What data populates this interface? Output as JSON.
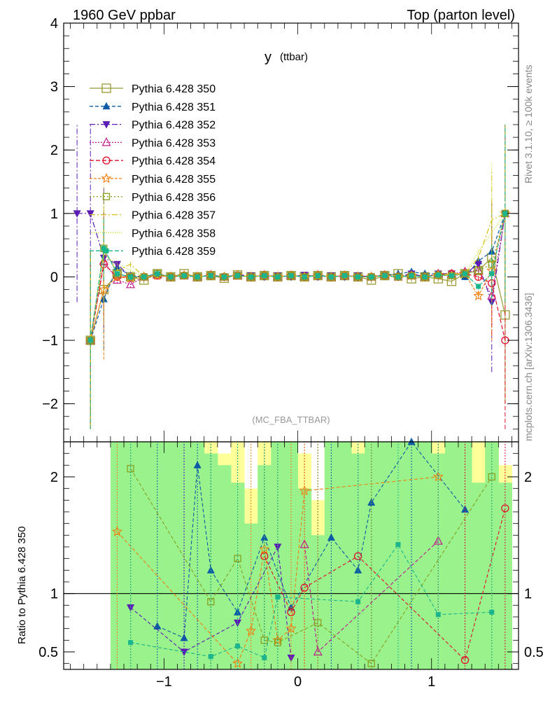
{
  "header": {
    "left": "1960 GeV ppbar",
    "right": "Top (parton level)"
  },
  "side_labels": {
    "rivet": "Rivet 3.1.10, ≥ 100k events",
    "mcplots": "mcplots.cern.ch [arXiv:1306.3436]"
  },
  "chart_data": [
    {
      "type": "line",
      "panel": "main",
      "title": "y",
      "title_sub": "(ttbar)",
      "watermark": "(MC_FBA_TTBAR)",
      "xlabel": "",
      "ylabel": "",
      "xlim": [
        -1.75,
        1.65
      ],
      "ylim": [
        -2.6,
        4.0
      ],
      "yticks": [
        -2,
        -1,
        0,
        1,
        2,
        3,
        4
      ],
      "ytick_labels": [
        "−2",
        "−1",
        "0",
        "1",
        "2",
        "3",
        "4"
      ],
      "legend_placement": "top-left",
      "x": [
        -1.65,
        -1.55,
        -1.45,
        -1.35,
        -1.25,
        -1.15,
        -1.05,
        -0.95,
        -0.85,
        -0.75,
        -0.65,
        -0.55,
        -0.45,
        -0.35,
        -0.25,
        -0.15,
        -0.05,
        0.05,
        0.15,
        0.25,
        0.35,
        0.45,
        0.55,
        0.65,
        0.75,
        0.85,
        0.95,
        1.05,
        1.15,
        1.25,
        1.35,
        1.45,
        1.55
      ],
      "series": [
        {
          "name": "Pythia 6.428 350",
          "color": "#999933",
          "marker": "square-open",
          "dash": "",
          "values": [
            null,
            -1.0,
            -0.2,
            0.05,
            0.0,
            -0.05,
            0.05,
            0.0,
            0.05,
            0.0,
            0.02,
            -0.02,
            0.03,
            0.0,
            0.02,
            0.0,
            0.02,
            0.0,
            0.02,
            0.0,
            0.02,
            0.0,
            -0.05,
            0.02,
            0.05,
            -0.03,
            0.0,
            -0.03,
            -0.07,
            0.05,
            0.1,
            0.3,
            -0.6
          ]
        },
        {
          "name": "Pythia 6.428 351",
          "color": "#0b5aa6",
          "marker": "triangle-up",
          "dash": "5,3",
          "values": [
            null,
            -1.0,
            -0.35,
            0.15,
            0.02,
            0.0,
            0.05,
            0.0,
            0.02,
            0.0,
            0.03,
            0.0,
            0.02,
            0.0,
            0.03,
            0.0,
            0.02,
            0.0,
            0.03,
            0.0,
            0.02,
            0.0,
            0.0,
            0.03,
            0.05,
            0.08,
            0.05,
            0.05,
            0.05,
            0.0,
            0.25,
            0.4,
            1.0
          ]
        },
        {
          "name": "Pythia 6.428 352",
          "color": "#5a1cb5",
          "marker": "triangle-down",
          "dash": "8,3,2,3",
          "values": [
            1.0,
            1.0,
            0.3,
            0.2,
            0.0,
            0.0,
            0.03,
            0.0,
            0.02,
            0.0,
            0.02,
            0.0,
            0.03,
            0.02,
            0.0,
            0.02,
            0.0,
            0.03,
            0.0,
            0.02,
            0.0,
            0.02,
            0.0,
            0.03,
            0.0,
            0.05,
            0.0,
            0.05,
            0.05,
            0.05,
            0.2,
            -0.4,
            1.0
          ]
        },
        {
          "name": "Pythia 6.428 353",
          "color": "#c0198c",
          "marker": "triangle-up-open",
          "dash": "2,2",
          "values": [
            null,
            -1.0,
            0.25,
            -0.05,
            -0.12,
            0.0,
            0.03,
            0.0,
            0.02,
            0.0,
            0.03,
            0.0,
            0.02,
            0.0,
            0.03,
            0.0,
            0.02,
            0.0,
            0.03,
            0.0,
            0.02,
            0.0,
            0.0,
            0.03,
            0.0,
            0.02,
            0.0,
            0.05,
            0.05,
            0.08,
            0.1,
            -0.3,
            1.0
          ]
        },
        {
          "name": "Pythia 6.428 354",
          "color": "#e0102b",
          "marker": "circle-open",
          "dash": "6,3",
          "values": [
            null,
            -1.0,
            0.2,
            0.0,
            0.0,
            0.0,
            0.02,
            0.0,
            0.02,
            0.0,
            0.02,
            0.0,
            0.02,
            0.0,
            0.02,
            0.0,
            0.02,
            0.0,
            0.02,
            0.0,
            0.02,
            0.0,
            0.0,
            0.02,
            0.0,
            0.02,
            0.0,
            0.03,
            0.05,
            0.05,
            0.0,
            -0.1,
            -1.0
          ]
        },
        {
          "name": "Pythia 6.428 355",
          "color": "#f07f10",
          "marker": "star-open",
          "dash": "4,2",
          "values": [
            null,
            -1.0,
            -0.2,
            0.0,
            -0.02,
            0.0,
            0.02,
            0.0,
            0.02,
            0.0,
            0.02,
            0.0,
            0.02,
            0.0,
            0.02,
            0.0,
            0.02,
            0.0,
            0.02,
            0.0,
            0.02,
            0.0,
            0.0,
            0.02,
            0.0,
            0.02,
            0.0,
            0.03,
            0.02,
            0.05,
            -0.3,
            0.1,
            1.0
          ]
        },
        {
          "name": "Pythia 6.428 356",
          "color": "#88a020",
          "marker": "square-open-small",
          "dash": "2,3",
          "values": [
            null,
            -1.0,
            0.45,
            0.05,
            0.0,
            0.0,
            0.05,
            0.0,
            0.02,
            0.0,
            0.02,
            0.0,
            0.02,
            0.0,
            0.02,
            0.0,
            0.02,
            0.0,
            0.02,
            0.0,
            0.02,
            0.0,
            0.0,
            0.02,
            0.0,
            0.02,
            0.0,
            0.03,
            0.02,
            0.05,
            0.1,
            0.2,
            1.0
          ]
        },
        {
          "name": "Pythia 6.428 357",
          "color": "#d6c21a",
          "marker": "none",
          "dash": "8,3,2,3",
          "values": [
            null,
            -1.0,
            0.4,
            0.1,
            0.2,
            0.0,
            0.03,
            0.0,
            0.02,
            0.0,
            0.02,
            0.0,
            0.02,
            0.0,
            0.02,
            0.0,
            0.02,
            0.0,
            0.02,
            0.0,
            0.02,
            0.0,
            0.0,
            0.02,
            0.0,
            0.02,
            0.0,
            0.03,
            0.05,
            0.05,
            0.3,
            0.9,
            1.0
          ]
        },
        {
          "name": "Pythia 6.428 358",
          "color": "#c8dc14",
          "marker": "none",
          "dash": "1,2",
          "values": [
            null,
            -1.0,
            0.35,
            0.2,
            0.1,
            0.0,
            0.03,
            0.0,
            0.02,
            0.0,
            0.02,
            0.0,
            0.02,
            0.0,
            0.02,
            0.0,
            0.02,
            0.0,
            0.02,
            0.0,
            0.02,
            0.0,
            0.0,
            0.02,
            0.0,
            0.02,
            0.0,
            0.03,
            0.02,
            0.05,
            0.4,
            0.7,
            1.0
          ]
        },
        {
          "name": "Pythia 6.428 359",
          "color": "#1ab58c",
          "marker": "square-filled-small",
          "dash": "6,3",
          "values": [
            null,
            -1.0,
            0.45,
            0.05,
            0.0,
            0.0,
            0.05,
            0.0,
            0.02,
            0.0,
            0.02,
            0.0,
            0.02,
            0.0,
            0.02,
            0.0,
            0.02,
            0.0,
            0.02,
            0.0,
            0.02,
            0.0,
            0.0,
            0.02,
            0.0,
            0.02,
            0.0,
            0.03,
            0.02,
            0.05,
            -0.15,
            0.05,
            1.0
          ]
        }
      ]
    },
    {
      "type": "line",
      "panel": "ratio",
      "ylabel": "Ratio to Pythia 6.428 350",
      "xlim": [
        -1.75,
        1.65
      ],
      "ylim": [
        0.35,
        2.3
      ],
      "xticks": [
        -1,
        0,
        1
      ],
      "xtick_labels": [
        "−1",
        "0",
        "1"
      ],
      "yticks": [
        0.5,
        1,
        2
      ],
      "ytick_labels": [
        "0.5",
        "1",
        "2"
      ],
      "reference_line": 1,
      "x": [
        -1.35,
        -1.25,
        -1.15,
        -1.05,
        -0.95,
        -0.85,
        -0.75,
        -0.65,
        -0.55,
        -0.45,
        -0.35,
        -0.25,
        -0.15,
        -0.05,
        0.05,
        0.15,
        0.25,
        0.35,
        0.45,
        0.55,
        0.65,
        0.75,
        0.85,
        0.95,
        1.05,
        1.15,
        1.25,
        1.35,
        1.45,
        1.55
      ],
      "band_yellow_upper": [
        2.3,
        2.3,
        2.3,
        2.3,
        2.3,
        2.3,
        2.3,
        2.3,
        2.2,
        2.3,
        1.9,
        2.3,
        2.3,
        2.3,
        2.2,
        1.8,
        2.3,
        2.3,
        2.3,
        2.3,
        2.3,
        2.3,
        2.3,
        2.3,
        2.3,
        2.3,
        2.3,
        2.3,
        2.3,
        2.1
      ],
      "band_green_upper": [
        2.3,
        2.3,
        2.3,
        2.3,
        2.3,
        2.3,
        2.3,
        2.2,
        2.1,
        1.95,
        1.6,
        2.1,
        2.3,
        2.3,
        1.9,
        1.5,
        2.3,
        2.3,
        2.2,
        2.3,
        2.3,
        2.3,
        2.3,
        2.3,
        2.2,
        2.3,
        2.3,
        1.95,
        2.3,
        1.95
      ],
      "band_green_lower": [
        0.35,
        0.35,
        0.35,
        0.35,
        0.35,
        0.35,
        0.35,
        0.35,
        0.35,
        0.35,
        0.35,
        0.35,
        0.35,
        0.35,
        0.35,
        0.35,
        0.35,
        0.35,
        0.35,
        0.35,
        0.35,
        0.35,
        0.35,
        0.35,
        0.35,
        0.35,
        0.35,
        0.35,
        0.35,
        0.35
      ],
      "series": [
        {
          "name": "Pythia 6.428 351",
          "color": "#0b5aa6",
          "marker": "triangle-up",
          "values": [
            null,
            null,
            null,
            0.72,
            null,
            0.62,
            2.1,
            1.2,
            null,
            0.84,
            null,
            1.48,
            null,
            0.88,
            null,
            null,
            1.48,
            null,
            1.2,
            1.78,
            null,
            null,
            2.3,
            null,
            null,
            null,
            1.72,
            null,
            null,
            null
          ]
        },
        {
          "name": "Pythia 6.428 352",
          "color": "#5a1cb5",
          "marker": "triangle-down",
          "values": [
            null,
            0.88,
            null,
            null,
            null,
            0.5,
            null,
            null,
            null,
            0.75,
            null,
            null,
            1.4,
            0.45,
            null,
            null,
            null,
            null,
            null,
            null,
            null,
            null,
            null,
            null,
            null,
            null,
            null,
            null,
            null,
            null
          ]
        },
        {
          "name": "Pythia 6.428 353",
          "color": "#c0198c",
          "marker": "triangle-up-open",
          "values": [
            null,
            null,
            null,
            null,
            null,
            null,
            null,
            null,
            null,
            null,
            null,
            null,
            null,
            null,
            1.42,
            0.5,
            null,
            null,
            null,
            null,
            null,
            null,
            null,
            null,
            1.45,
            null,
            null,
            null,
            null,
            null
          ]
        },
        {
          "name": "Pythia 6.428 354",
          "color": "#e0102b",
          "marker": "circle-open",
          "values": [
            null,
            null,
            null,
            null,
            null,
            null,
            null,
            null,
            null,
            null,
            null,
            1.32,
            null,
            0.84,
            1.05,
            null,
            null,
            null,
            1.32,
            null,
            null,
            null,
            null,
            null,
            null,
            null,
            0.43,
            null,
            null,
            1.73
          ]
        },
        {
          "name": "Pythia 6.428 355",
          "color": "#f07f10",
          "marker": "star-open",
          "values": [
            1.53,
            null,
            null,
            null,
            null,
            null,
            null,
            null,
            null,
            0.4,
            0.68,
            1.38,
            0.6,
            0.7,
            1.88,
            null,
            null,
            null,
            null,
            null,
            null,
            null,
            null,
            null,
            2.0,
            null,
            null,
            null,
            null,
            null
          ]
        },
        {
          "name": "Pythia 6.428 356",
          "color": "#88a020",
          "marker": "square-open-small",
          "values": [
            null,
            2.07,
            null,
            null,
            null,
            null,
            null,
            0.93,
            null,
            1.3,
            null,
            0.6,
            0.58,
            null,
            null,
            0.75,
            null,
            null,
            null,
            0.4,
            null,
            null,
            null,
            null,
            null,
            null,
            null,
            null,
            2.0,
            null
          ]
        },
        {
          "name": "Pythia 6.428 359",
          "color": "#1ab58c",
          "marker": "square-filled-small",
          "values": [
            null,
            0.58,
            null,
            null,
            null,
            null,
            null,
            0.46,
            null,
            0.55,
            null,
            0.45,
            0.97,
            null,
            null,
            null,
            null,
            null,
            0.93,
            null,
            null,
            1.42,
            null,
            null,
            0.82,
            null,
            null,
            null,
            0.84,
            null
          ]
        }
      ]
    }
  ]
}
